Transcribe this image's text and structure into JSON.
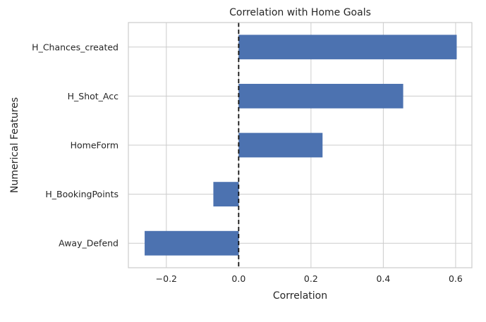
{
  "chart_data": {
    "type": "bar",
    "orientation": "horizontal",
    "title": "Correlation with Home Goals",
    "xlabel": "Correlation",
    "ylabel": "Numerical Features",
    "categories": [
      "H_Chances_created",
      "H_Shot_Acc",
      "HomeForm",
      "H_BookingPoints",
      "Away_Defend"
    ],
    "values": [
      0.603,
      0.455,
      0.232,
      -0.07,
      -0.26
    ],
    "xlim": [
      -0.305,
      0.645
    ],
    "xticks": [
      -0.2,
      0.0,
      0.2,
      0.4,
      0.6
    ],
    "xtick_labels": [
      "−0.2",
      "0.0",
      "0.2",
      "0.4",
      "0.6"
    ],
    "reference_line": {
      "x": 0,
      "style": "dashed",
      "color": "#111111"
    },
    "grid": true,
    "bar_color": "#4c72b0",
    "grid_color": "#cccccc",
    "spine_color": "#cccccc"
  }
}
